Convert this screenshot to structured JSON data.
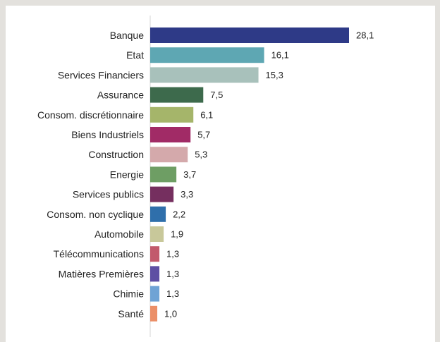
{
  "chart_data": {
    "type": "bar",
    "orientation": "horizontal",
    "categories": [
      "Banque",
      "Etat",
      "Services Financiers",
      "Assurance",
      "Consom. discrétionnaire",
      "Biens Industriels",
      "Construction",
      "Energie",
      "Services publics",
      "Consom. non cyclique",
      "Automobile",
      "Télécommunications",
      "Matières Premières",
      "Chimie",
      "Santé"
    ],
    "values": [
      28.1,
      16.1,
      15.3,
      7.5,
      6.1,
      5.7,
      5.3,
      3.7,
      3.3,
      2.2,
      1.9,
      1.3,
      1.3,
      1.3,
      1.0
    ],
    "value_labels": [
      "28,1",
      "16,1",
      "15,3",
      "7,5",
      "6,1",
      "5,7",
      "5,3",
      "3,7",
      "3,3",
      "2,2",
      "1,9",
      "1,3",
      "1,3",
      "1,3",
      "1,0"
    ],
    "colors": [
      "#2e3a87",
      "#5ea7b3",
      "#a8c1bb",
      "#3d6a4c",
      "#a5b56a",
      "#a12b66",
      "#d4a9ab",
      "#6e9e64",
      "#752f5f",
      "#2f6fab",
      "#c8c89a",
      "#c25a6c",
      "#5e4fa3",
      "#6fa3d5",
      "#eb8f68"
    ],
    "xlim": [
      0,
      28.1
    ],
    "grid": false,
    "title": "",
    "xlabel": "",
    "ylabel": ""
  }
}
